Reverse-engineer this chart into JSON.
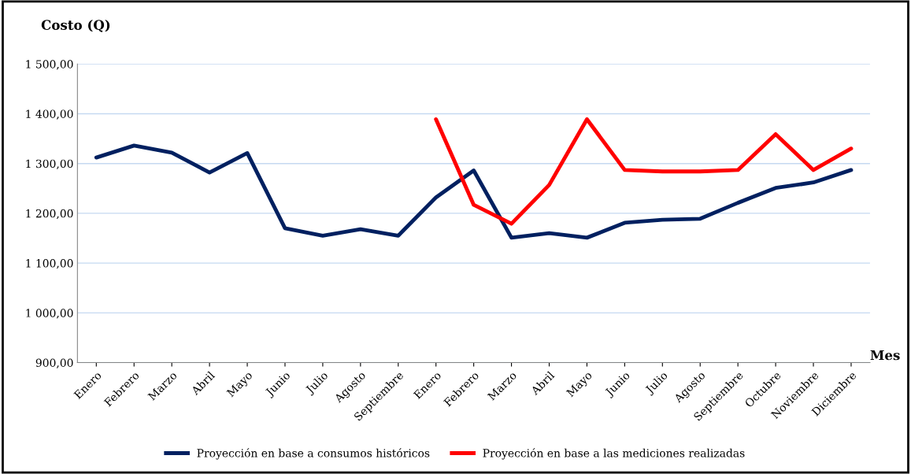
{
  "chart_data": {
    "type": "line",
    "ylabel": "Costo (Q)",
    "xlabel": "Mes",
    "categories": [
      "Enero",
      "Febrero",
      "Marzo",
      "Abril",
      "Mayo",
      "Junio",
      "Julio",
      "Agosto",
      "Septiembre",
      "Enero",
      "Febrero",
      "Marzo",
      "Abril",
      "Mayo",
      "Junio",
      "Julio",
      "Agosto",
      "Septiembre",
      "Octubre",
      "Noviembre",
      "Diciembre"
    ],
    "series": [
      {
        "name": "Proyección en base a consumos históricos",
        "color": "#002060",
        "values": [
          1312,
          1336,
          1322,
          1282,
          1321,
          1170,
          1155,
          1168,
          1155,
          1232,
          1286,
          1151,
          1160,
          1151,
          1181,
          1187,
          1189,
          1221,
          1251,
          1262,
          1287
        ]
      },
      {
        "name": "Proyección en base a las mediciones realizadas",
        "color": "#ff0000",
        "values": [
          null,
          null,
          null,
          null,
          null,
          null,
          null,
          null,
          null,
          1389,
          1217,
          1179,
          1257,
          1389,
          1287,
          1284,
          1284,
          1287,
          1359,
          1287,
          1330
        ]
      }
    ],
    "ylim": [
      900,
      1500
    ],
    "yticks": [
      {
        "value": 900,
        "label": "900,00"
      },
      {
        "value": 1000,
        "label": "1 000,00"
      },
      {
        "value": 1100,
        "label": "1 100,00"
      },
      {
        "value": 1200,
        "label": "1 200,00"
      },
      {
        "value": 1300,
        "label": "1 300,00"
      },
      {
        "value": 1400,
        "label": "1 400,00"
      },
      {
        "value": 1500,
        "label": "1 500,00"
      }
    ],
    "grid": "y",
    "legend": "bottom",
    "marker": "none",
    "line_style": "solid"
  }
}
